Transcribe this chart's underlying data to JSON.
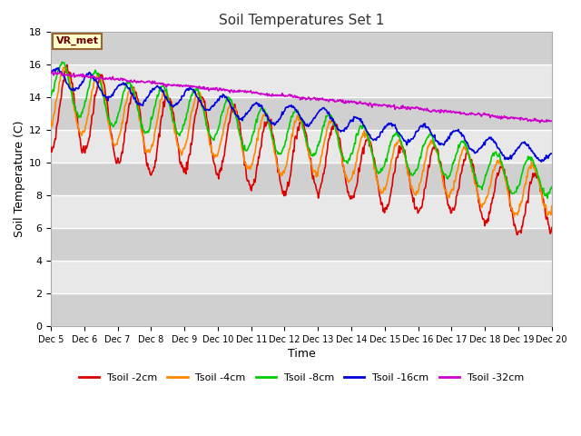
{
  "title": "Soil Temperatures Set 1",
  "xlabel": "Time",
  "ylabel": "Soil Temperature (C)",
  "ylim": [
    0,
    18
  ],
  "yticks": [
    0,
    2,
    4,
    6,
    8,
    10,
    12,
    14,
    16,
    18
  ],
  "x_labels": [
    "Dec 5",
    "Dec 6",
    "Dec 7",
    "Dec 8",
    "Dec 9",
    "Dec 10",
    "Dec 11",
    "Dec 12",
    "Dec 13",
    "Dec 14",
    "Dec 15",
    "Dec 16",
    "Dec 17",
    "Dec 18",
    "Dec 19",
    "Dec 20"
  ],
  "annotation": "VR_met",
  "series_colors": [
    "#dd0000",
    "#ff8800",
    "#00cc00",
    "#0000dd",
    "#cc00cc"
  ],
  "series_labels": [
    "Tsoil -2cm",
    "Tsoil -4cm",
    "Tsoil -8cm",
    "Tsoil -16cm",
    "Tsoil -32cm"
  ],
  "band_colors": [
    "#e8e8e8",
    "#d0d0d0"
  ],
  "fig_bg": "#ffffff",
  "figsize": [
    6.4,
    4.8
  ],
  "dpi": 100
}
